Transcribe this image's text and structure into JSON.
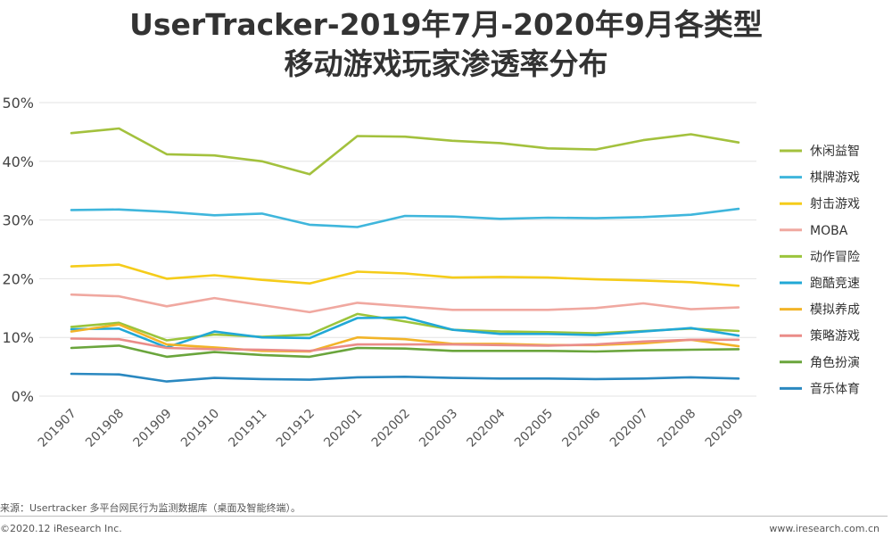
{
  "chart_data": {
    "type": "line",
    "title_line1": "UserTracker-2019年7月-2020年9月各类型",
    "title_line2": "移动游戏玩家渗透率分布",
    "categories": [
      "201907",
      "201908",
      "201909",
      "201910",
      "201911",
      "201912",
      "202001",
      "202002",
      "202003",
      "202004",
      "202005",
      "202006",
      "202007",
      "202008",
      "202009"
    ],
    "y_ticks": [
      "0%",
      "10%",
      "20%",
      "30%",
      "40%",
      "50%"
    ],
    "ylim": [
      0,
      50
    ],
    "grid": true,
    "legend_position": "right",
    "series": [
      {
        "name": "休闲益智",
        "color": "#a3c13d",
        "values": [
          44.8,
          45.6,
          41.2,
          41.0,
          40.0,
          37.8,
          44.3,
          44.2,
          43.5,
          43.1,
          42.2,
          42.0,
          43.6,
          44.6,
          43.2
        ]
      },
      {
        "name": "棋牌游戏",
        "color": "#3fb6dc",
        "values": [
          31.7,
          31.8,
          31.4,
          30.8,
          31.1,
          29.2,
          28.8,
          30.7,
          30.6,
          30.2,
          30.4,
          30.3,
          30.5,
          30.9,
          31.9
        ]
      },
      {
        "name": "射击游戏",
        "color": "#f5cc1a",
        "values": [
          22.1,
          22.4,
          20.0,
          20.6,
          19.8,
          19.2,
          21.2,
          20.9,
          20.2,
          20.3,
          20.2,
          19.9,
          19.7,
          19.4,
          18.8
        ]
      },
      {
        "name": "MOBA",
        "color": "#f0a8a0",
        "values": [
          17.3,
          17.0,
          15.3,
          16.7,
          15.5,
          14.3,
          15.9,
          15.3,
          14.7,
          14.7,
          14.7,
          15.0,
          15.8,
          14.8,
          15.1
        ]
      },
      {
        "name": "动作冒险",
        "color": "#9bc43c",
        "values": [
          11.8,
          12.5,
          9.5,
          10.5,
          10.1,
          10.5,
          14.0,
          12.7,
          11.3,
          11.0,
          10.9,
          10.7,
          11.1,
          11.5,
          11.1
        ]
      },
      {
        "name": "跑酷竞速",
        "color": "#21a8d6",
        "values": [
          11.4,
          11.5,
          8.3,
          11.0,
          10.0,
          9.9,
          13.3,
          13.4,
          11.3,
          10.6,
          10.6,
          10.4,
          11.0,
          11.6,
          10.3
        ]
      },
      {
        "name": "模拟养成",
        "color": "#f2b428",
        "values": [
          11.0,
          12.2,
          8.8,
          8.3,
          7.7,
          7.6,
          10.0,
          9.7,
          8.9,
          8.9,
          8.7,
          8.7,
          9.0,
          9.6,
          8.5
        ]
      },
      {
        "name": "策略游戏",
        "color": "#ea8c88",
        "values": [
          9.8,
          9.7,
          8.2,
          8.0,
          7.9,
          7.7,
          8.8,
          8.8,
          8.8,
          8.7,
          8.6,
          8.8,
          9.3,
          9.6,
          9.6
        ]
      },
      {
        "name": "角色扮演",
        "color": "#6aa53c",
        "values": [
          8.2,
          8.6,
          6.7,
          7.5,
          7.0,
          6.7,
          8.2,
          8.1,
          7.7,
          7.7,
          7.7,
          7.6,
          7.8,
          7.9,
          8.0
        ]
      },
      {
        "name": "音乐体育",
        "color": "#2a88c0",
        "values": [
          3.8,
          3.7,
          2.5,
          3.1,
          2.9,
          2.8,
          3.2,
          3.3,
          3.1,
          3.0,
          3.0,
          2.9,
          3.0,
          3.2,
          3.0
        ]
      }
    ]
  },
  "footer": {
    "source": "来源：Usertracker 多平台网民行为监测数据库（桌面及智能终端）。",
    "copyright": "©2020.12 iResearch Inc.",
    "website": "www.iresearch.com.cn"
  }
}
